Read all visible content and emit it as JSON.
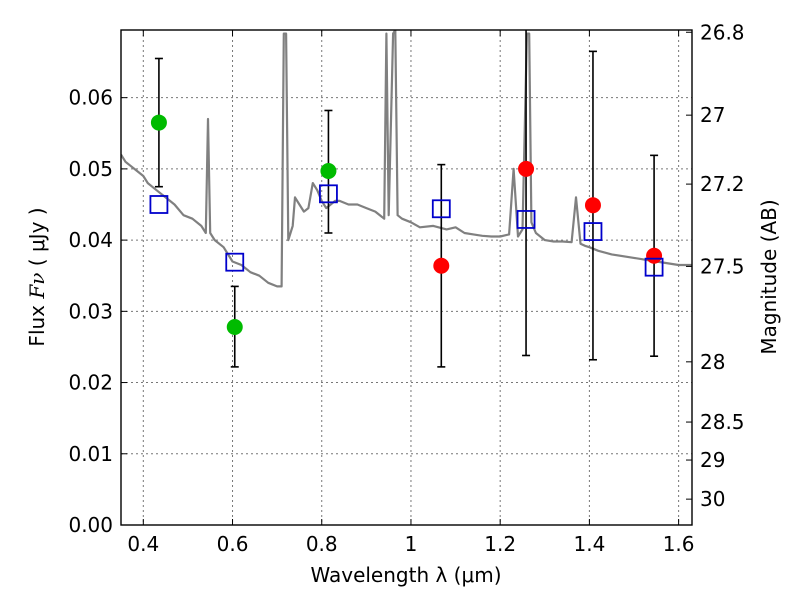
{
  "chart_data": {
    "type": "scatter",
    "xlabel": "Wavelength  λ (μm)",
    "ylabel_text": "Flux",
    "ylabel_symbol": "Fν",
    "ylabel_unit": "( μJy )",
    "y2label": "Magnitude (AB)",
    "xlim": [
      0.35,
      1.63
    ],
    "ylim": [
      0.0,
      0.0695
    ],
    "grid": true,
    "x_ticks": [
      0.4,
      0.6,
      0.8,
      1.0,
      1.2,
      1.4,
      1.6
    ],
    "x_tick_labels": [
      "0.4",
      "0.6",
      "0.8",
      "1",
      "1.2",
      "1.4",
      "1.6"
    ],
    "y_ticks": [
      0.0,
      0.01,
      0.02,
      0.03,
      0.04,
      0.05,
      0.06
    ],
    "y_tick_labels": [
      "0.00",
      "0.01",
      "0.02",
      "0.03",
      "0.04",
      "0.05",
      "0.06"
    ],
    "y2_ticks": [
      26.8,
      27,
      27.2,
      27.5,
      28,
      28.5,
      29,
      30
    ],
    "y2_tick_labels": [
      "26.8",
      "27",
      "27.2",
      "27.5",
      "28",
      "28.5",
      "29",
      "30"
    ],
    "series": [
      {
        "marker": "circle",
        "color": "#00bb00",
        "x": [
          0.435,
          0.605,
          0.815
        ],
        "y": [
          0.0565,
          0.0278,
          0.0497
        ],
        "yerr_low": [
          0.0475,
          0.0222,
          0.041
        ],
        "yerr_high": [
          0.0655,
          0.0335,
          0.0582
        ]
      },
      {
        "marker": "circle",
        "color": "#ff0000",
        "x": [
          1.068,
          1.258,
          1.408,
          1.545
        ],
        "y": [
          0.0364,
          0.05,
          0.0449,
          0.0378
        ],
        "yerr_low": [
          0.0222,
          0.0238,
          0.0232,
          0.0237
        ],
        "yerr_high": [
          0.0506,
          0.0695,
          0.0665,
          0.0519
        ]
      },
      {
        "marker": "open-square",
        "color": "#0000cc",
        "x": [
          0.435,
          0.605,
          0.815,
          1.068,
          1.258,
          1.408,
          1.545
        ],
        "y": [
          0.045,
          0.0369,
          0.0465,
          0.0444,
          0.0429,
          0.0412,
          0.0362
        ]
      },
      {
        "marker": "line",
        "color": "#808080",
        "x": [
          0.35,
          0.36,
          0.37,
          0.38,
          0.39,
          0.4,
          0.41,
          0.42,
          0.43,
          0.44,
          0.45,
          0.47,
          0.49,
          0.51,
          0.53,
          0.54,
          0.545,
          0.55,
          0.56,
          0.58,
          0.6,
          0.62,
          0.64,
          0.66,
          0.68,
          0.7,
          0.71,
          0.715,
          0.72,
          0.725,
          0.73,
          0.735,
          0.74,
          0.75,
          0.76,
          0.77,
          0.78,
          0.79,
          0.8,
          0.81,
          0.82,
          0.83,
          0.84,
          0.86,
          0.88,
          0.9,
          0.92,
          0.94,
          0.945,
          0.95,
          0.96,
          0.965,
          0.97,
          0.98,
          1.0,
          1.02,
          1.05,
          1.08,
          1.1,
          1.12,
          1.14,
          1.16,
          1.18,
          1.2,
          1.22,
          1.23,
          1.24,
          1.25,
          1.26,
          1.265,
          1.27,
          1.28,
          1.3,
          1.32,
          1.34,
          1.36,
          1.37,
          1.38,
          1.39,
          1.4,
          1.42,
          1.45,
          1.5,
          1.55,
          1.6,
          1.63
        ],
        "y": [
          0.052,
          0.051,
          0.0505,
          0.05,
          0.0495,
          0.049,
          0.048,
          0.0475,
          0.047,
          0.0465,
          0.046,
          0.045,
          0.0435,
          0.043,
          0.042,
          0.041,
          0.057,
          0.041,
          0.04,
          0.039,
          0.037,
          0.0365,
          0.0355,
          0.035,
          0.034,
          0.0335,
          0.0335,
          0.069,
          0.069,
          0.04,
          0.041,
          0.042,
          0.046,
          0.045,
          0.044,
          0.0445,
          0.048,
          0.047,
          0.0455,
          0.0445,
          0.045,
          0.0455,
          0.0455,
          0.045,
          0.045,
          0.0445,
          0.044,
          0.043,
          0.069,
          0.0435,
          0.069,
          0.0695,
          0.0435,
          0.043,
          0.0425,
          0.0418,
          0.042,
          0.0415,
          0.0418,
          0.041,
          0.0408,
          0.0406,
          0.0405,
          0.0405,
          0.0408,
          0.05,
          0.0405,
          0.0415,
          0.069,
          0.069,
          0.0425,
          0.041,
          0.04,
          0.0398,
          0.0398,
          0.0397,
          0.046,
          0.0395,
          0.0392,
          0.039,
          0.0385,
          0.038,
          0.0375,
          0.037,
          0.0365,
          0.0365
        ]
      }
    ]
  }
}
